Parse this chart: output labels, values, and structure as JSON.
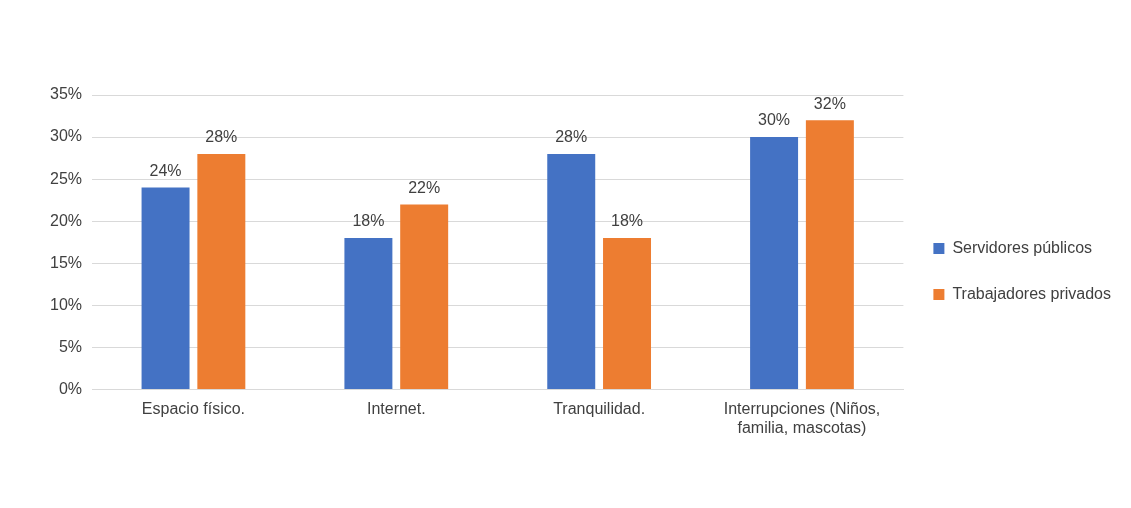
{
  "chart_data": {
    "type": "bar",
    "categories": [
      "Espacio físico.",
      "Internet.",
      "Tranquilidad.",
      "Interrupciones (Niños, familia, mascotas)"
    ],
    "series": [
      {
        "name": "Servidores públicos",
        "color": "#4472c4",
        "values": [
          24,
          18,
          28,
          30
        ],
        "value_labels": [
          "24%",
          "18%",
          "28%",
          "30%"
        ]
      },
      {
        "name": "Trabajadores privados",
        "color": "#ed7d31",
        "values": [
          28,
          22,
          18,
          32
        ],
        "value_labels": [
          "28%",
          "22%",
          "18%",
          "32%"
        ]
      }
    ],
    "ylim": [
      0,
      35
    ],
    "yticks": [
      {
        "value": 0,
        "label": "0%"
      },
      {
        "value": 5,
        "label": "5%"
      },
      {
        "value": 10,
        "label": "10%"
      },
      {
        "value": 15,
        "label": "15%"
      },
      {
        "value": 20,
        "label": "20%"
      },
      {
        "value": 25,
        "label": "25%"
      },
      {
        "value": 30,
        "label": "30%"
      },
      {
        "value": 35,
        "label": "35%"
      }
    ],
    "grid": "y",
    "legend": "right"
  }
}
